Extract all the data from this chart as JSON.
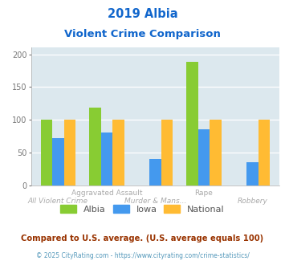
{
  "title_line1": "2019 Albia",
  "title_line2": "Violent Crime Comparison",
  "groups": [
    {
      "label": "All Violent Crime",
      "albia": 100,
      "iowa": 72,
      "national": 100
    },
    {
      "label": "Aggravated Assault",
      "albia": 119,
      "iowa": 81,
      "national": 100
    },
    {
      "label": "Murder & Mans...",
      "albia": 0,
      "iowa": 40,
      "national": 100
    },
    {
      "label": "Rape",
      "albia": 188,
      "iowa": 86,
      "national": 100
    },
    {
      "label": "Robbery",
      "albia": 0,
      "iowa": 35,
      "national": 100
    }
  ],
  "color_albia": "#88cc33",
  "color_iowa": "#4499ee",
  "color_national": "#ffbb33",
  "plot_bg": "#dce8ee",
  "ylim": [
    0,
    210
  ],
  "yticks": [
    0,
    50,
    100,
    150,
    200
  ],
  "title_color": "#1166cc",
  "footnote": "Compared to U.S. average. (U.S. average equals 100)",
  "copyright": "© 2025 CityRating.com - https://www.cityrating.com/crime-statistics/",
  "footnote_color": "#993300",
  "copyright_color": "#5599bb",
  "label_color": "#aaaaaa",
  "legend_color": "#555555"
}
